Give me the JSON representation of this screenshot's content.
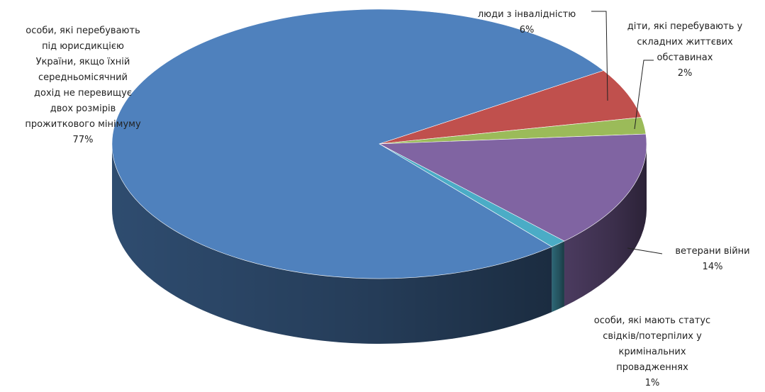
{
  "chart_data": {
    "type": "pie",
    "title": "",
    "slices": [
      {
        "label_lines": [
          "особи, які перебувають",
          "під юрисдикцією",
          "України, якщо їхній",
          "середньомісячний",
          "дохід не перевищує",
          "двох розмірів",
          "прожиткового мінімуму"
        ],
        "value": 77,
        "value_label": "77%",
        "color": "#4F81BD"
      },
      {
        "label_lines": [
          "люди з інвалідністю"
        ],
        "value": 6,
        "value_label": "6%",
        "color": "#C0504D"
      },
      {
        "label_lines": [
          "діти, які перебувають  у",
          "складних життєвих",
          "обставинах"
        ],
        "value": 2,
        "value_label": "2%",
        "color": "#9BBB59"
      },
      {
        "label_lines": [
          "ветерани війни"
        ],
        "value": 14,
        "value_label": "14%",
        "color": "#8064A2"
      },
      {
        "label_lines": [
          "особи, які мають статус",
          "свідків/потерпілих у",
          "кримінальних",
          "провадженнях"
        ],
        "value": 1,
        "value_label": "1%",
        "color": "#4BACC6"
      }
    ],
    "style": "3d-pie",
    "legend": "none"
  }
}
